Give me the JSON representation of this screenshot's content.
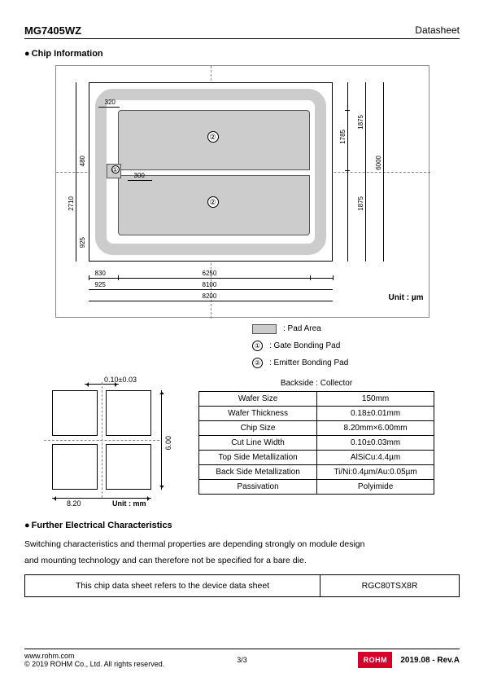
{
  "header": {
    "part": "MG7405WZ",
    "doc": "Datasheet"
  },
  "section1": "Chip Information",
  "chip": {
    "unit": "Unit : µm",
    "dims": {
      "w_total": "8200",
      "w_inner": "8100",
      "w_pads": "6250",
      "left_830": "830",
      "left_925": "925",
      "left_320": "320",
      "h_total": "6000",
      "h_1875a": "1875",
      "h_1875b": "1875",
      "h_1785": "1785",
      "h_480": "480",
      "h_300": "300",
      "h_2710": "2710",
      "h_925": "925"
    }
  },
  "legend": {
    "pad": ": Pad Area",
    "g1": ": Gate Bonding Pad",
    "g2": ": Emitter Bonding Pad"
  },
  "die": {
    "cutw": "0.10±0.03",
    "h": "6.00",
    "w": "8.20",
    "unit": "Unit : mm"
  },
  "spec": {
    "title": "Backside : Collector",
    "rows": [
      [
        "Wafer Size",
        "150mm"
      ],
      [
        "Wafer Thickness",
        "0.18±0.01mm"
      ],
      [
        "Chip Size",
        "8.20mm×6.00mm"
      ],
      [
        "Cut Line Width",
        "0.10±0.03mm"
      ],
      [
        "Top Side Metallization",
        "AlSiCu:4.4µm"
      ],
      [
        "Back Side Metallization",
        "Ti/Ni:0.4µm/Au:0.05µm"
      ],
      [
        "Passivation",
        "Polyimide"
      ]
    ]
  },
  "section2": "Further Electrical Characteristics",
  "further": {
    "l1": "Switching characteristics and thermal properties are depending strongly on module design",
    "l2": "and mounting technology and can therefore not be specified for a bare die.",
    "ref_label": "This chip data sheet refers to the device data sheet",
    "ref_val": "RGC80TSX8R"
  },
  "footer": {
    "url": "www.rohm.com",
    "copy": "© 2019 ROHM Co., Ltd. All rights reserved.",
    "page": "3/3",
    "logo": "ROHM",
    "rev": "2019.08 -  Rev.A"
  }
}
